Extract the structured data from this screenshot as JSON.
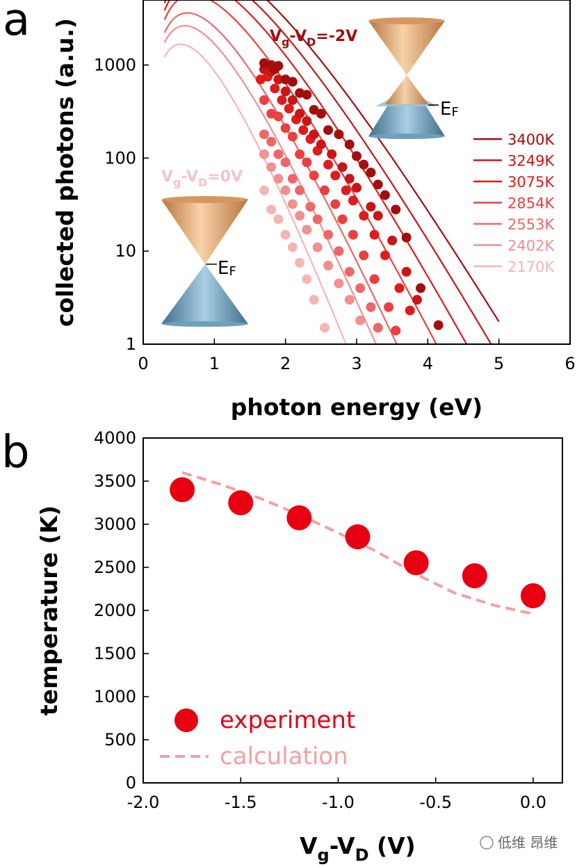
{
  "chart_data": [
    {
      "panel_label": "a",
      "type": "scatter",
      "xlabel": "photon energy (eV)",
      "ylabel": "collected photons (a.u.)",
      "yscale": "log",
      "xlim": [
        0,
        6
      ],
      "ylim": [
        1,
        5000
      ],
      "xticks": [
        0,
        1,
        2,
        3,
        4,
        5,
        6
      ],
      "yticks": [
        {
          "value": 1,
          "label": "1"
        },
        {
          "value": 10,
          "label": "10"
        },
        {
          "value": 100,
          "label": "100"
        },
        {
          "value": 1000,
          "label": "1000"
        }
      ],
      "annotations": {
        "top": {
          "V": "V",
          "g": "g",
          "dash": "-V",
          "D": "D",
          "rest": "=-2V"
        },
        "bottom": {
          "V": "V",
          "g": "g",
          "dash": "-V",
          "D": "D",
          "rest": "=0V"
        },
        "fermi": {
          "E": "E",
          "F": "F"
        }
      },
      "series": [
        {
          "name": "3400K",
          "T": 3400,
          "A": 360000,
          "color": "#a40d0d",
          "points": [
            [
              1.7,
              1050
            ],
            [
              1.8,
              1000
            ],
            [
              1.85,
              900
            ],
            [
              1.9,
              980
            ],
            [
              2.0,
              700
            ],
            [
              2.1,
              660
            ],
            [
              2.2,
              500
            ],
            [
              2.3,
              480
            ],
            [
              2.4,
              330
            ],
            [
              2.5,
              300
            ],
            [
              2.6,
              200
            ],
            [
              2.75,
              180
            ],
            [
              2.9,
              140
            ],
            [
              3.0,
              105
            ],
            [
              3.1,
              85
            ],
            [
              3.2,
              70
            ],
            [
              3.3,
              52
            ],
            [
              3.4,
              40
            ],
            [
              3.55,
              28
            ],
            [
              3.7,
              14
            ],
            [
              3.9,
              4.0
            ],
            [
              4.15,
              1.6
            ]
          ]
        },
        {
          "name": "3249K",
          "T": 3249,
          "A": 330000,
          "color": "#c91515",
          "points": [
            [
              1.7,
              900
            ],
            [
              1.8,
              850
            ],
            [
              1.9,
              700
            ],
            [
              2.0,
              520
            ],
            [
              2.1,
              420
            ],
            [
              2.2,
              300
            ],
            [
              2.3,
              250
            ],
            [
              2.4,
              180
            ],
            [
              2.5,
              140
            ],
            [
              2.65,
              110
            ],
            [
              2.8,
              80
            ],
            [
              2.9,
              60
            ],
            [
              3.0,
              48
            ],
            [
              3.2,
              30
            ],
            [
              3.3,
              24
            ],
            [
              3.5,
              13
            ],
            [
              3.7,
              6
            ],
            [
              3.85,
              3
            ]
          ]
        },
        {
          "name": "3075K",
          "T": 3075,
          "A": 300000,
          "color": "#e01b1b",
          "points": [
            [
              1.65,
              700
            ],
            [
              1.75,
              750
            ],
            [
              1.85,
              560
            ],
            [
              1.95,
              420
            ],
            [
              2.05,
              340
            ],
            [
              2.15,
              260
            ],
            [
              2.25,
              200
            ],
            [
              2.35,
              160
            ],
            [
              2.45,
              120
            ],
            [
              2.6,
              85
            ],
            [
              2.7,
              65
            ],
            [
              2.85,
              45
            ],
            [
              2.95,
              35
            ],
            [
              3.1,
              24
            ],
            [
              3.25,
              15
            ],
            [
              3.4,
              9
            ],
            [
              3.6,
              4
            ],
            [
              3.75,
              2.3
            ]
          ]
        },
        {
          "name": "2854K",
          "T": 2854,
          "A": 270000,
          "color": "#ea4040",
          "points": [
            [
              1.7,
              420
            ],
            [
              1.8,
              300
            ],
            [
              1.9,
              280
            ],
            [
              2.0,
              210
            ],
            [
              2.1,
              170
            ],
            [
              2.2,
              110
            ],
            [
              2.3,
              90
            ],
            [
              2.4,
              65
            ],
            [
              2.55,
              45
            ],
            [
              2.7,
              32
            ],
            [
              2.8,
              22
            ],
            [
              2.95,
              15
            ],
            [
              3.1,
              9
            ],
            [
              3.25,
              5
            ],
            [
              3.45,
              2.5
            ],
            [
              3.55,
              1.4
            ]
          ]
        },
        {
          "name": "2553K",
          "T": 2553,
          "A": 240000,
          "color": "#ec6868",
          "points": [
            [
              1.7,
              180
            ],
            [
              1.8,
              150
            ],
            [
              1.9,
              110
            ],
            [
              2.0,
              90
            ],
            [
              2.1,
              60
            ],
            [
              2.2,
              45
            ],
            [
              2.35,
              30
            ],
            [
              2.45,
              22
            ],
            [
              2.6,
              15
            ],
            [
              2.75,
              10
            ],
            [
              2.9,
              6
            ],
            [
              3.05,
              4
            ],
            [
              3.2,
              2.5
            ],
            [
              3.3,
              1.5
            ]
          ]
        },
        {
          "name": "2402K",
          "T": 2402,
          "A": 210000,
          "color": "#f09090",
          "points": [
            [
              1.7,
              110
            ],
            [
              1.8,
              80
            ],
            [
              1.9,
              60
            ],
            [
              2.0,
              45
            ],
            [
              2.1,
              32
            ],
            [
              2.2,
              24
            ],
            [
              2.3,
              17
            ],
            [
              2.45,
              11
            ],
            [
              2.6,
              7
            ],
            [
              2.75,
              4.5
            ],
            [
              2.9,
              3
            ],
            [
              3.05,
              1.8
            ]
          ]
        },
        {
          "name": "2170K",
          "T": 2170,
          "A": 180000,
          "color": "#f5b5b5",
          "points": [
            [
              1.7,
              45
            ],
            [
              1.8,
              28
            ],
            [
              1.9,
              22
            ],
            [
              2.0,
              15
            ],
            [
              2.1,
              11
            ],
            [
              2.2,
              7.5
            ],
            [
              2.3,
              5
            ],
            [
              2.4,
              3
            ],
            [
              2.55,
              1.5
            ]
          ]
        }
      ]
    },
    {
      "panel_label": "b",
      "type": "scatter",
      "xlabel": "V_g-V_D (V)",
      "xlabel_parts": {
        "V1": "V",
        "sub1": "g",
        "mid": "-V",
        "sub2": "D",
        "tail": " (V)"
      },
      "ylabel": "temperature (K)",
      "xlim": [
        -2.0,
        0.15
      ],
      "ylim": [
        0,
        4000
      ],
      "xticks": [
        {
          "value": -2.0,
          "label": "-2.0"
        },
        {
          "value": -1.5,
          "label": "-1.5"
        },
        {
          "value": -1.0,
          "label": "-1.0"
        },
        {
          "value": -0.5,
          "label": "-0.5"
        },
        {
          "value": 0.0,
          "label": "0.0"
        }
      ],
      "yticks": [
        0,
        500,
        1000,
        1500,
        2000,
        2500,
        3000,
        3500,
        4000
      ],
      "series": [
        {
          "name": "experiment",
          "kind": "markers",
          "color": "#e60012",
          "x": [
            -1.8,
            -1.5,
            -1.2,
            -0.9,
            -0.6,
            -0.3,
            0.0
          ],
          "y": [
            3400,
            3249,
            3075,
            2854,
            2553,
            2402,
            2170
          ]
        },
        {
          "name": "calculation",
          "kind": "dashed",
          "color": "#f4a0a0",
          "x": [
            -1.8,
            -1.6,
            -1.4,
            -1.2,
            -1.0,
            -0.8,
            -0.6,
            -0.4,
            -0.2,
            0.0
          ],
          "y": [
            3600,
            3460,
            3300,
            3110,
            2900,
            2680,
            2420,
            2200,
            2060,
            1960
          ]
        }
      ],
      "legend": {
        "experiment": "experiment",
        "calculation": "calculation"
      }
    }
  ],
  "watermark": "低维 昂维"
}
